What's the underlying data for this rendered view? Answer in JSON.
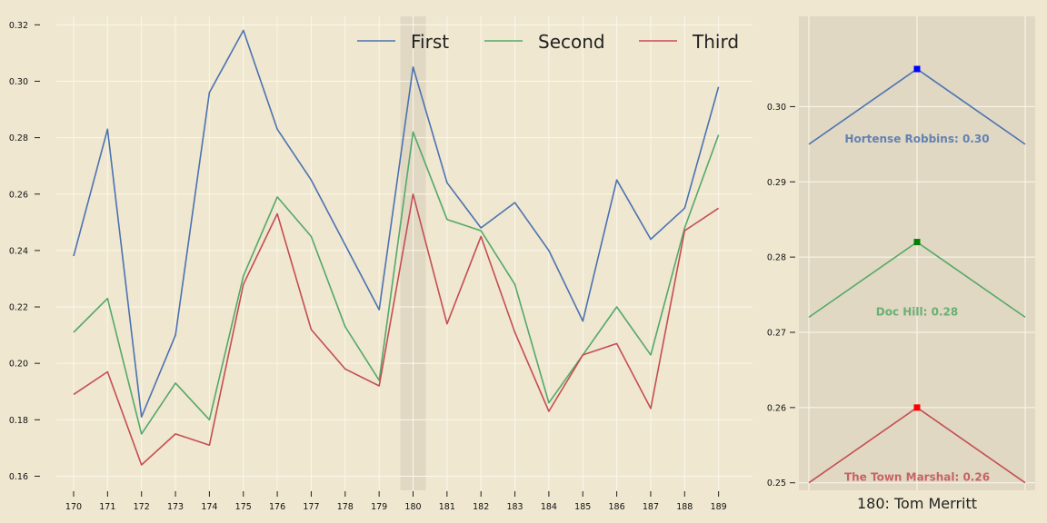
{
  "chart_data": [
    {
      "type": "line",
      "x": [
        170,
        171,
        172,
        173,
        174,
        175,
        176,
        177,
        178,
        179,
        180,
        181,
        182,
        183,
        184,
        185,
        186,
        187,
        188,
        189
      ],
      "yticks": [
        0.16,
        0.18,
        0.2,
        0.22,
        0.24,
        0.26,
        0.28,
        0.3,
        0.32
      ],
      "ytick_labels": [
        "0.16",
        "0.18",
        "0.20",
        "0.22",
        "0.24",
        "0.26",
        "0.28",
        "0.30",
        "0.32"
      ],
      "ylim": [
        0.155,
        0.323
      ],
      "highlight_x": 180,
      "legend_position": "top-right",
      "series": [
        {
          "name": "First",
          "color": "#4c72b0",
          "values": [
            0.238,
            0.283,
            0.181,
            0.21,
            0.296,
            0.318,
            0.283,
            0.265,
            0.242,
            0.219,
            0.305,
            0.264,
            0.248,
            0.257,
            0.24,
            0.215,
            0.265,
            0.244,
            0.255,
            0.298
          ]
        },
        {
          "name": "Second",
          "color": "#55a868",
          "values": [
            0.211,
            0.223,
            0.175,
            0.193,
            0.18,
            0.231,
            0.259,
            0.245,
            0.213,
            0.194,
            0.282,
            0.251,
            0.247,
            0.228,
            0.186,
            0.203,
            0.22,
            0.203,
            0.248,
            0.281
          ]
        },
        {
          "name": "Third",
          "color": "#c44e52",
          "values": [
            0.189,
            0.197,
            0.164,
            0.175,
            0.171,
            0.228,
            0.253,
            0.212,
            0.198,
            0.192,
            0.26,
            0.214,
            0.245,
            0.211,
            0.183,
            0.203,
            0.207,
            0.184,
            0.247,
            0.255
          ]
        }
      ]
    },
    {
      "type": "line",
      "title": "180: Tom Merritt",
      "yticks": [
        0.25,
        0.26,
        0.27,
        0.28,
        0.29,
        0.3
      ],
      "ytick_labels": [
        "0.25",
        "0.26",
        "0.27",
        "0.28",
        "0.29",
        "0.30"
      ],
      "ylim": [
        0.249,
        0.312
      ],
      "series": [
        {
          "color": "#4c72b0",
          "values": [
            0.295,
            0.305,
            0.295
          ],
          "label": "Hortense Robbins: 0.30",
          "marker_color": "#0000ff"
        },
        {
          "color": "#55a868",
          "values": [
            0.272,
            0.282,
            0.272
          ],
          "label": "Doc Hill: 0.28",
          "marker_color": "#008000"
        },
        {
          "color": "#c44e52",
          "values": [
            0.25,
            0.26,
            0.25
          ],
          "label": "The Town Marshal: 0.26",
          "marker_color": "#ff0000"
        }
      ]
    }
  ]
}
